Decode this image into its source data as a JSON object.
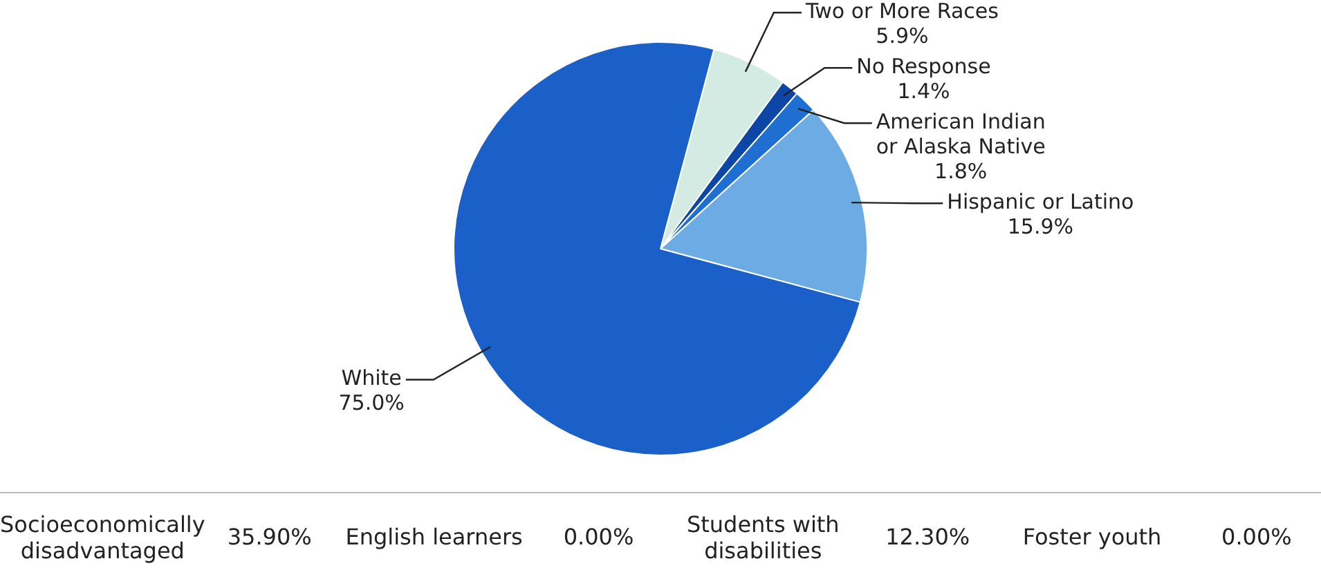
{
  "chart_data": {
    "type": "pie",
    "categories": [
      "Two or More Races",
      "No Response",
      "American Indian or Alaska Native",
      "Hispanic or Latino",
      "White"
    ],
    "values": [
      5.9,
      1.4,
      1.8,
      15.9,
      75.0
    ],
    "value_labels": [
      "5.9%",
      "1.4%",
      "1.8%",
      "15.9%",
      "75.0%"
    ],
    "colors": [
      "#d3ebe3",
      "#0c47a8",
      "#1f6fd2",
      "#6cabe3",
      "#1b5fc9"
    ],
    "legend": false,
    "annotations": [
      "Socioeconomically disadvantaged",
      "35.90%",
      "English learners",
      "0.00%",
      "Students with disabilities",
      "12.30%",
      "Foster youth",
      "0.00%"
    ]
  }
}
